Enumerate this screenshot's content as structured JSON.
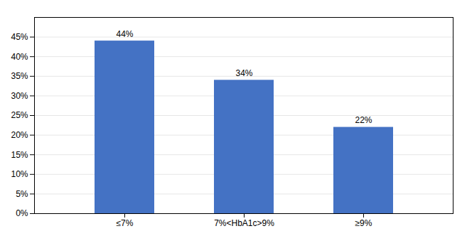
{
  "chart_data": {
    "type": "bar",
    "categories": [
      "≤7%",
      "7%<HbA1c>9%",
      "≥9%"
    ],
    "values": [
      44,
      34,
      22
    ],
    "value_labels": [
      "44%",
      "34%",
      "22%"
    ],
    "data_labels": true,
    "color": "#4472C4",
    "ylim": [
      0,
      50
    ],
    "yticks": [
      {
        "value": 0,
        "label": "0%"
      },
      {
        "value": 5,
        "label": "5%"
      },
      {
        "value": 10,
        "label": "10%"
      },
      {
        "value": 15,
        "label": "15%"
      },
      {
        "value": 20,
        "label": "20%"
      },
      {
        "value": 25,
        "label": "25%"
      },
      {
        "value": 30,
        "label": "30%"
      },
      {
        "value": 35,
        "label": "35%"
      },
      {
        "value": 40,
        "label": "40%"
      },
      {
        "value": 45,
        "label": "45%"
      }
    ],
    "grid": true
  }
}
